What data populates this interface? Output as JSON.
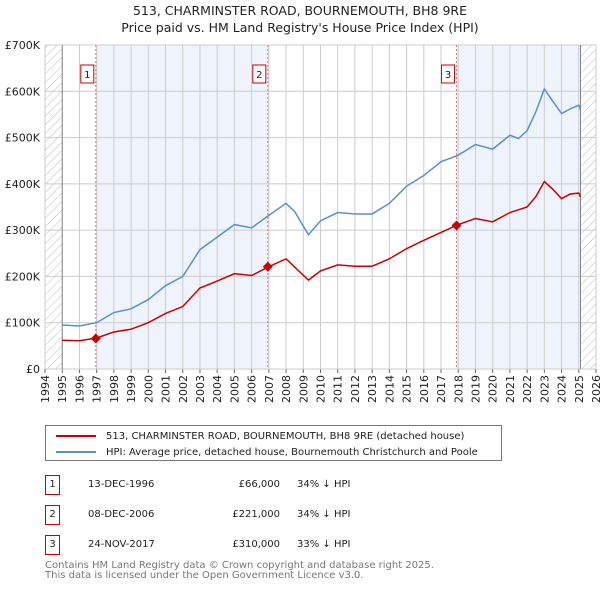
{
  "chart_data": {
    "type": "line",
    "title": "513, CHARMINSTER ROAD, BOURNEMOUTH, BH8 9RE",
    "subtitle": "Price paid vs. HM Land Registry's House Price Index (HPI)",
    "xlim": [
      1994,
      2026
    ],
    "ylim": [
      0,
      700000
    ],
    "x_ticks": [
      "1994",
      "1995",
      "1996",
      "1997",
      "1998",
      "1999",
      "2000",
      "2001",
      "2002",
      "2003",
      "2004",
      "2005",
      "2006",
      "2007",
      "2008",
      "2009",
      "2010",
      "2011",
      "2012",
      "2013",
      "2014",
      "2015",
      "2016",
      "2017",
      "2018",
      "2019",
      "2020",
      "2021",
      "2022",
      "2023",
      "2024",
      "2025",
      "2026"
    ],
    "y_ticks": [
      {
        "v": 0,
        "label": "£0"
      },
      {
        "v": 100000,
        "label": "£100K"
      },
      {
        "v": 200000,
        "label": "£200K"
      },
      {
        "v": 300000,
        "label": "£300K"
      },
      {
        "v": 400000,
        "label": "£400K"
      },
      {
        "v": 500000,
        "label": "£500K"
      },
      {
        "v": 600000,
        "label": "£600K"
      },
      {
        "v": 700000,
        "label": "£700K"
      }
    ],
    "series": [
      {
        "name": "513, CHARMINSTER ROAD, BOURNEMOUTH, BH8 9RE (detached house)",
        "color": "#cc0000",
        "x": [
          1995,
          1996,
          1997,
          1998,
          1999,
          2000,
          2001,
          2002,
          2003,
          2004,
          2005,
          2006,
          2007,
          2008,
          2009.3,
          2010,
          2011,
          2012,
          2013,
          2014,
          2015,
          2016,
          2017,
          2018,
          2019,
          2020,
          2021,
          2022,
          2022.5,
          2023,
          2023.5,
          2024,
          2024.5,
          2025,
          2025.1
        ],
        "y": [
          62000,
          61000,
          67000,
          80000,
          86000,
          100000,
          120000,
          135000,
          175000,
          190000,
          206000,
          202000,
          221000,
          238000,
          192000,
          212000,
          225000,
          222000,
          222000,
          238000,
          260000,
          278000,
          295000,
          312000,
          325000,
          318000,
          338000,
          350000,
          372000,
          405000,
          388000,
          368000,
          378000,
          380000,
          372000
        ]
      },
      {
        "name": "HPI: Average price, detached house, Bournemouth Christchurch and Poole",
        "color": "#5b8fd0",
        "x": [
          1995,
          1996,
          1997,
          1998,
          1999,
          2000,
          2001,
          2002,
          2003,
          2004,
          2005,
          2006,
          2007,
          2008,
          2008.5,
          2009.3,
          2010,
          2011,
          2012,
          2013,
          2014,
          2015,
          2016,
          2017,
          2018,
          2019,
          2020,
          2021,
          2021.5,
          2022,
          2022.5,
          2023,
          2023.5,
          2024,
          2024.5,
          2025,
          2025.1
        ],
        "y": [
          95000,
          93000,
          100000,
          122000,
          130000,
          150000,
          180000,
          200000,
          258000,
          285000,
          312000,
          305000,
          332000,
          358000,
          340000,
          290000,
          320000,
          338000,
          335000,
          335000,
          358000,
          395000,
          418000,
          448000,
          462000,
          485000,
          475000,
          505000,
          498000,
          515000,
          555000,
          605000,
          578000,
          552000,
          562000,
          570000,
          560000
        ]
      }
    ],
    "sales": [
      {
        "n": "1",
        "x": 1996.95,
        "date": "13-DEC-1996",
        "price": 66000,
        "price_label": "£66,000",
        "hpi": "34% ↓ HPI"
      },
      {
        "n": "2",
        "x": 2006.94,
        "date": "08-DEC-2006",
        "price": 221000,
        "price_label": "£221,000",
        "hpi": "34% ↓ HPI"
      },
      {
        "n": "3",
        "x": 2017.9,
        "date": "24-NOV-2017",
        "price": 310000,
        "price_label": "£310,000",
        "hpi": "33% ↓ HPI"
      }
    ]
  },
  "footer": {
    "line1": "Contains HM Land Registry data © Crown copyright and database right 2025.",
    "line2": "This data is licensed under the Open Government Licence v3.0."
  }
}
